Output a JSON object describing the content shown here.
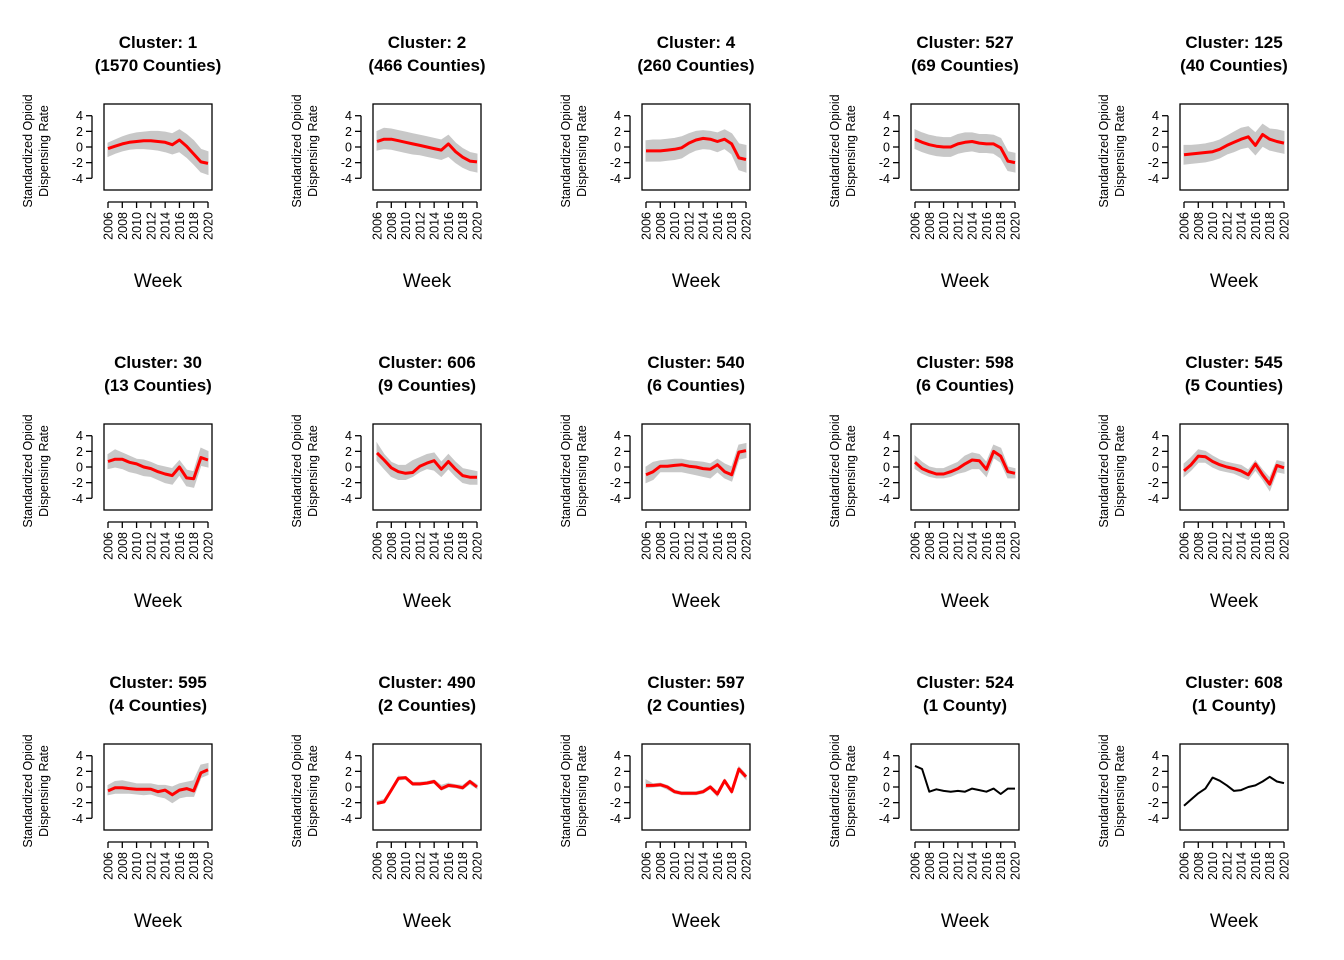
{
  "layout_note": "",
  "figure": {
    "shared": {
      "xlabel": "Week",
      "ylabel_line1": "Standardized Opioid",
      "ylabel_line2": "Dispensing Rate",
      "yticks": [
        4,
        2,
        0,
        -2,
        -4
      ],
      "xticks": [
        2006,
        2008,
        2010,
        2012,
        2014,
        2016,
        2018,
        2020
      ],
      "ylim": [
        -5.5,
        5.5
      ],
      "xlim": [
        2006,
        2020
      ],
      "colors": {
        "center": "#ff0000",
        "member": "#c8c8c8",
        "single": "#000000"
      }
    }
  },
  "chart_data": [
    {
      "type": "line",
      "title_line1": "Cluster: 1",
      "title_line2": "(1570 Counties)",
      "x": [
        2006,
        2007,
        2008,
        2009,
        2010,
        2011,
        2012,
        2013,
        2014,
        2015,
        2016,
        2017,
        2018,
        2019,
        2020
      ],
      "series": [
        {
          "role": "band",
          "upper": [
            0.5,
            0.9,
            1.3,
            1.6,
            1.8,
            1.9,
            2.0,
            2.0,
            1.9,
            1.7,
            2.2,
            1.6,
            0.8,
            -0.3,
            -0.6
          ],
          "lower": [
            -1.2,
            -0.8,
            -0.5,
            -0.3,
            -0.2,
            -0.2,
            -0.3,
            -0.4,
            -0.6,
            -0.9,
            -0.6,
            -1.3,
            -2.2,
            -3.2,
            -3.5
          ]
        },
        {
          "role": "center",
          "values": [
            -0.2,
            0.1,
            0.4,
            0.6,
            0.7,
            0.8,
            0.8,
            0.7,
            0.6,
            0.3,
            0.9,
            0.1,
            -0.9,
            -1.9,
            -2.1
          ]
        }
      ]
    },
    {
      "type": "line",
      "title_line1": "Cluster: 2",
      "title_line2": "(466 Counties)",
      "x": [
        2006,
        2007,
        2008,
        2009,
        2010,
        2011,
        2012,
        2013,
        2014,
        2015,
        2016,
        2017,
        2018,
        2019,
        2020
      ],
      "series": [
        {
          "role": "band",
          "upper": [
            2.0,
            2.4,
            2.3,
            2.1,
            1.9,
            1.7,
            1.5,
            1.3,
            1.1,
            0.9,
            1.5,
            0.5,
            -0.2,
            -0.7,
            -0.9
          ],
          "lower": [
            -0.4,
            -0.2,
            -0.3,
            -0.5,
            -0.7,
            -0.9,
            -1.0,
            -1.2,
            -1.4,
            -1.6,
            -1.2,
            -2.0,
            -2.6,
            -3.0,
            -3.2
          ]
        },
        {
          "role": "center",
          "values": [
            0.7,
            1.0,
            1.0,
            0.8,
            0.6,
            0.4,
            0.2,
            0.0,
            -0.2,
            -0.4,
            0.4,
            -0.6,
            -1.3,
            -1.8,
            -1.9
          ]
        }
      ]
    },
    {
      "type": "line",
      "title_line1": "Cluster: 4",
      "title_line2": "(260 Counties)",
      "x": [
        2006,
        2007,
        2008,
        2009,
        2010,
        2011,
        2012,
        2013,
        2014,
        2015,
        2016,
        2017,
        2018,
        2019,
        2020
      ],
      "series": [
        {
          "role": "band",
          "upper": [
            0.8,
            0.9,
            0.9,
            1.0,
            1.1,
            1.3,
            1.7,
            2.0,
            2.1,
            2.0,
            1.8,
            2.2,
            1.7,
            0.4,
            0.2
          ],
          "lower": [
            -1.8,
            -1.8,
            -1.8,
            -1.7,
            -1.6,
            -1.4,
            -0.8,
            -0.4,
            -0.2,
            -0.3,
            -0.6,
            -0.2,
            -0.9,
            -2.9,
            -3.2
          ]
        },
        {
          "role": "center",
          "values": [
            -0.5,
            -0.5,
            -0.5,
            -0.4,
            -0.3,
            -0.1,
            0.5,
            0.9,
            1.1,
            1.0,
            0.7,
            1.0,
            0.4,
            -1.4,
            -1.6
          ]
        }
      ]
    },
    {
      "type": "line",
      "title_line1": "Cluster: 527",
      "title_line2": "(69 Counties)",
      "x": [
        2006,
        2007,
        2008,
        2009,
        2010,
        2011,
        2012,
        2013,
        2014,
        2015,
        2016,
        2017,
        2018,
        2019,
        2020
      ],
      "series": [
        {
          "role": "band",
          "upper": [
            2.2,
            1.8,
            1.5,
            1.3,
            1.2,
            1.2,
            1.6,
            1.8,
            1.8,
            1.6,
            1.6,
            1.5,
            1.1,
            -0.6,
            -0.8
          ],
          "lower": [
            -0.2,
            -0.6,
            -0.9,
            -1.1,
            -1.2,
            -1.2,
            -0.8,
            -0.6,
            -0.5,
            -0.7,
            -0.7,
            -0.8,
            -1.4,
            -3.0,
            -3.2
          ]
        },
        {
          "role": "center",
          "values": [
            1.0,
            0.6,
            0.3,
            0.1,
            0.0,
            0.0,
            0.4,
            0.6,
            0.7,
            0.5,
            0.4,
            0.4,
            -0.1,
            -1.8,
            -2.0
          ]
        }
      ]
    },
    {
      "type": "line",
      "title_line1": "Cluster: 125",
      "title_line2": "(40 Counties)",
      "x": [
        2006,
        2007,
        2008,
        2009,
        2010,
        2011,
        2012,
        2013,
        2014,
        2015,
        2016,
        2017,
        2018,
        2019,
        2020
      ],
      "series": [
        {
          "role": "band",
          "upper": [
            0.2,
            0.2,
            0.3,
            0.4,
            0.6,
            0.9,
            1.4,
            1.9,
            2.4,
            2.6,
            1.8,
            2.9,
            2.3,
            2.2,
            2.0
          ],
          "lower": [
            -2.2,
            -2.1,
            -2.0,
            -1.9,
            -1.7,
            -1.4,
            -0.9,
            -0.6,
            -0.2,
            0.0,
            -1.0,
            0.1,
            -0.4,
            -0.6,
            -0.8
          ]
        },
        {
          "role": "center",
          "values": [
            -1.0,
            -0.9,
            -0.8,
            -0.7,
            -0.6,
            -0.3,
            0.2,
            0.6,
            1.0,
            1.3,
            0.2,
            1.6,
            1.0,
            0.7,
            0.5
          ]
        }
      ]
    },
    {
      "type": "line",
      "title_line1": "Cluster: 30",
      "title_line2": "(13 Counties)",
      "x": [
        2006,
        2007,
        2008,
        2009,
        2010,
        2011,
        2012,
        2013,
        2014,
        2015,
        2016,
        2017,
        2018,
        2019,
        2020
      ],
      "series": [
        {
          "role": "band",
          "upper": [
            1.6,
            2.2,
            1.8,
            1.4,
            1.0,
            0.9,
            0.6,
            0.2,
            0.0,
            -0.2,
            0.8,
            -0.4,
            -0.6,
            2.4,
            2.0
          ],
          "lower": [
            -0.2,
            0.0,
            -0.2,
            -0.6,
            -0.8,
            -1.1,
            -1.2,
            -1.6,
            -2.0,
            -2.2,
            -1.0,
            -2.4,
            -2.6,
            0.2,
            0.0
          ]
        },
        {
          "role": "center",
          "values": [
            0.7,
            1.0,
            1.0,
            0.6,
            0.4,
            0.0,
            -0.2,
            -0.6,
            -0.9,
            -1.1,
            0.0,
            -1.4,
            -1.5,
            1.2,
            0.9
          ]
        }
      ]
    },
    {
      "type": "line",
      "title_line1": "Cluster: 606",
      "title_line2": "(9 Counties)",
      "x": [
        2006,
        2007,
        2008,
        2009,
        2010,
        2011,
        2012,
        2013,
        2014,
        2015,
        2016,
        2017,
        2018,
        2019,
        2020
      ],
      "series": [
        {
          "role": "band",
          "upper": [
            3.0,
            1.6,
            0.6,
            0.2,
            0.2,
            0.8,
            1.2,
            1.6,
            1.8,
            0.6,
            1.6,
            0.6,
            -0.2,
            -0.4,
            -0.6
          ],
          "lower": [
            0.8,
            -0.2,
            -1.2,
            -1.6,
            -1.6,
            -1.2,
            -0.6,
            -0.2,
            -0.4,
            -1.2,
            -0.2,
            -1.2,
            -2.0,
            -2.2,
            -2.2
          ]
        },
        {
          "role": "center",
          "values": [
            1.8,
            0.9,
            -0.1,
            -0.6,
            -0.8,
            -0.7,
            0.1,
            0.5,
            0.8,
            -0.3,
            0.7,
            -0.3,
            -1.1,
            -1.3,
            -1.3
          ]
        }
      ]
    },
    {
      "type": "line",
      "title_line1": "Cluster: 540",
      "title_line2": "(6 Counties)",
      "x": [
        2006,
        2007,
        2008,
        2009,
        2010,
        2011,
        2012,
        2013,
        2014,
        2015,
        2016,
        2017,
        2018,
        2019,
        2020
      ],
      "series": [
        {
          "role": "band",
          "upper": [
            0.0,
            0.6,
            0.8,
            0.9,
            1.0,
            1.0,
            0.8,
            0.7,
            0.6,
            0.4,
            1.0,
            0.4,
            0.0,
            2.8,
            3.0
          ],
          "lower": [
            -2.0,
            -1.6,
            -0.6,
            -0.6,
            -0.6,
            -0.6,
            -0.8,
            -1.0,
            -1.2,
            -1.4,
            -0.6,
            -1.4,
            -1.8,
            1.0,
            1.2
          ]
        },
        {
          "role": "center",
          "values": [
            -1.0,
            -0.6,
            0.1,
            0.1,
            0.2,
            0.3,
            0.1,
            0.0,
            -0.2,
            -0.3,
            0.3,
            -0.6,
            -1.0,
            1.9,
            2.1
          ]
        }
      ]
    },
    {
      "type": "line",
      "title_line1": "Cluster: 598",
      "title_line2": "(6 Counties)",
      "x": [
        2006,
        2007,
        2008,
        2009,
        2010,
        2011,
        2012,
        2013,
        2014,
        2015,
        2016,
        2017,
        2018,
        2019,
        2020
      ],
      "series": [
        {
          "role": "band",
          "upper": [
            1.4,
            0.6,
            0.0,
            -0.2,
            -0.2,
            0.2,
            0.6,
            1.4,
            1.8,
            1.6,
            0.6,
            2.8,
            2.4,
            0.0,
            -0.2
          ],
          "lower": [
            -0.2,
            -0.8,
            -1.2,
            -1.4,
            -1.4,
            -1.2,
            -0.8,
            -0.6,
            -0.2,
            -0.2,
            -1.2,
            1.2,
            0.6,
            -1.4,
            -1.4
          ]
        },
        {
          "role": "center",
          "values": [
            0.6,
            -0.2,
            -0.6,
            -0.9,
            -0.9,
            -0.6,
            -0.2,
            0.4,
            0.9,
            0.8,
            -0.3,
            2.0,
            1.4,
            -0.6,
            -0.8
          ]
        }
      ]
    },
    {
      "type": "line",
      "title_line1": "Cluster: 545",
      "title_line2": "(5 Counties)",
      "x": [
        2006,
        2007,
        2008,
        2009,
        2010,
        2011,
        2012,
        2013,
        2014,
        2015,
        2016,
        2017,
        2018,
        2019,
        2020
      ],
      "series": [
        {
          "role": "band",
          "upper": [
            0.4,
            1.2,
            2.2,
            2.0,
            1.4,
            0.9,
            0.6,
            0.4,
            0.2,
            -0.4,
            0.8,
            -0.4,
            -1.4,
            0.8,
            0.6
          ],
          "lower": [
            -1.2,
            -0.4,
            0.6,
            0.6,
            0.0,
            -0.4,
            -0.6,
            -0.8,
            -1.2,
            -1.6,
            -0.4,
            -1.6,
            -3.0,
            -0.6,
            -0.8
          ]
        },
        {
          "role": "center",
          "values": [
            -0.5,
            0.3,
            1.4,
            1.3,
            0.7,
            0.3,
            0.0,
            -0.2,
            -0.5,
            -1.0,
            0.4,
            -1.0,
            -2.2,
            0.2,
            -0.1
          ]
        }
      ]
    },
    {
      "type": "line",
      "title_line1": "Cluster: 595",
      "title_line2": "(4 Counties)",
      "x": [
        2006,
        2007,
        2008,
        2009,
        2010,
        2011,
        2012,
        2013,
        2014,
        2015,
        2016,
        2017,
        2018,
        2019,
        2020
      ],
      "series": [
        {
          "role": "band",
          "upper": [
            0.2,
            0.7,
            0.8,
            0.6,
            0.4,
            0.4,
            0.4,
            0.2,
            0.2,
            0.0,
            0.4,
            0.6,
            0.8,
            2.8,
            3.0
          ],
          "lower": [
            -1.0,
            -0.8,
            -0.8,
            -0.8,
            -0.9,
            -1.0,
            -0.9,
            -1.2,
            -1.4,
            -2.0,
            -1.4,
            -1.2,
            -1.2,
            1.2,
            1.6
          ]
        },
        {
          "role": "center",
          "values": [
            -0.5,
            -0.1,
            -0.1,
            -0.2,
            -0.3,
            -0.3,
            -0.3,
            -0.6,
            -0.4,
            -1.0,
            -0.4,
            -0.2,
            -0.5,
            1.8,
            2.2
          ]
        }
      ]
    },
    {
      "type": "line",
      "title_line1": "Cluster: 490",
      "title_line2": "(2 Counties)",
      "x": [
        2006,
        2007,
        2008,
        2009,
        2010,
        2011,
        2012,
        2013,
        2014,
        2015,
        2016,
        2017,
        2018,
        2019,
        2020
      ],
      "series": [
        {
          "role": "band",
          "upper": [
            -1.8,
            -1.6,
            -0.2,
            1.4,
            1.3,
            0.6,
            0.6,
            0.7,
            0.9,
            0.2,
            0.5,
            0.3,
            0.2,
            0.9,
            0.3
          ],
          "lower": [
            -2.2,
            -2.0,
            -0.6,
            0.9,
            1.0,
            0.2,
            0.2,
            0.4,
            0.5,
            -0.4,
            0.0,
            -0.1,
            -0.3,
            0.4,
            -0.2
          ]
        },
        {
          "role": "center",
          "values": [
            -2.1,
            -1.9,
            -0.4,
            1.1,
            1.2,
            0.4,
            0.4,
            0.5,
            0.7,
            -0.2,
            0.2,
            0.1,
            -0.1,
            0.7,
            0.0
          ]
        }
      ]
    },
    {
      "type": "line",
      "title_line1": "Cluster: 597",
      "title_line2": "(2 Counties)",
      "x": [
        2006,
        2007,
        2008,
        2009,
        2010,
        2011,
        2012,
        2013,
        2014,
        2015,
        2016,
        2017,
        2018,
        2019,
        2020
      ],
      "series": [
        {
          "role": "band",
          "upper": [
            0.9,
            0.4,
            0.5,
            0.2,
            -0.4,
            -0.6,
            -0.6,
            -0.6,
            -0.4,
            0.2,
            -0.6,
            1.0,
            -0.4,
            2.6,
            1.6
          ],
          "lower": [
            -0.1,
            0.0,
            0.1,
            -0.3,
            -0.8,
            -1.0,
            -1.0,
            -1.0,
            -0.8,
            -0.2,
            -1.2,
            0.6,
            -0.8,
            2.0,
            1.0
          ]
        },
        {
          "role": "center",
          "values": [
            0.2,
            0.2,
            0.3,
            0.0,
            -0.6,
            -0.8,
            -0.8,
            -0.8,
            -0.6,
            0.0,
            -0.9,
            0.8,
            -0.6,
            2.3,
            1.3
          ]
        }
      ]
    },
    {
      "type": "line",
      "title_line1": "Cluster: 524",
      "title_line2": "(1 County)",
      "x": [
        2006,
        2007,
        2008,
        2009,
        2010,
        2011,
        2012,
        2013,
        2014,
        2015,
        2016,
        2017,
        2018,
        2019,
        2020
      ],
      "series": [
        {
          "role": "single",
          "values": [
            2.7,
            2.3,
            -0.6,
            -0.3,
            -0.5,
            -0.6,
            -0.5,
            -0.6,
            -0.2,
            -0.4,
            -0.6,
            -0.2,
            -0.9,
            -0.2,
            -0.2
          ]
        }
      ]
    },
    {
      "type": "line",
      "title_line1": "Cluster: 608",
      "title_line2": "(1 County)",
      "x": [
        2006,
        2007,
        2008,
        2009,
        2010,
        2011,
        2012,
        2013,
        2014,
        2015,
        2016,
        2017,
        2018,
        2019,
        2020
      ],
      "series": [
        {
          "role": "single",
          "values": [
            -2.4,
            -1.6,
            -0.8,
            -0.2,
            1.2,
            0.8,
            0.2,
            -0.5,
            -0.4,
            0.0,
            0.2,
            0.7,
            1.3,
            0.7,
            0.5
          ]
        }
      ]
    }
  ]
}
